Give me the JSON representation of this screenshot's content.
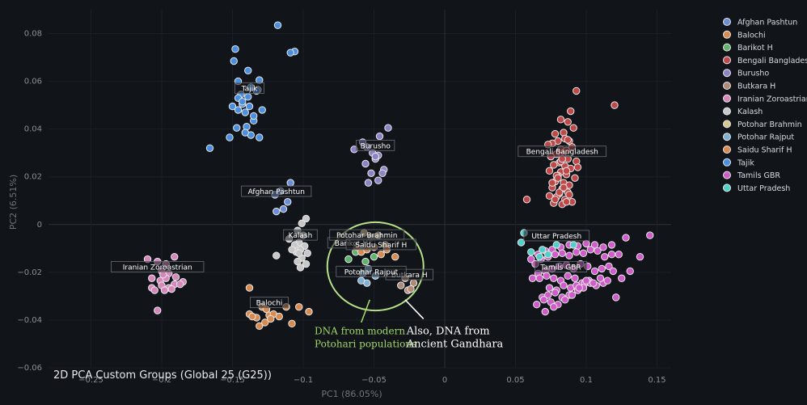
{
  "chart_data": {
    "type": "scatter",
    "title": "2D PCA Custom Groups (Global 25 (G25))",
    "xlabel": "PC1 (86.05%)",
    "ylabel": "PC2 (6.51%)",
    "xlim": [
      -0.28,
      0.16
    ],
    "ylim": [
      -0.06,
      0.09
    ],
    "xticks": [
      -0.25,
      -0.2,
      -0.15,
      -0.1,
      -0.05,
      0,
      0.05,
      0.1,
      0.15
    ],
    "xtick_labels": [
      "−0.25",
      "−0.2",
      "−0.15",
      "−0.1",
      "−0.05",
      "0",
      "0.05",
      "0.1",
      "0.15"
    ],
    "yticks": [
      -0.06,
      -0.04,
      -0.02,
      0,
      0.02,
      0.04,
      0.06,
      0.08
    ],
    "ytick_labels": [
      "−0.06",
      "−0.04",
      "−0.02",
      "0",
      "0.02",
      "0.04",
      "0.06",
      "0.08"
    ],
    "legend_position": "top-right",
    "series": [
      {
        "name": "Afghan Pashtun",
        "color": "#6a8fd8",
        "x": [
          -0.109,
          -0.111,
          -0.114,
          -0.119,
          -0.12,
          -0.116
        ],
        "y": [
          0.0175,
          0.0095,
          0.0065,
          0.0055,
          0.0125,
          0.014
        ],
        "label": "Afghan Pashtun"
      },
      {
        "name": "Balochi",
        "color": "#d98a4e",
        "x": [
          -0.138,
          -0.138,
          -0.133,
          -0.129,
          -0.126,
          -0.124,
          -0.121,
          -0.131,
          -0.127,
          -0.117,
          -0.108,
          -0.112,
          -0.103,
          -0.096,
          -0.136,
          -0.123
        ],
        "y": [
          -0.0265,
          -0.0375,
          -0.039,
          -0.0345,
          -0.0355,
          -0.038,
          -0.0375,
          -0.0425,
          -0.041,
          -0.0385,
          -0.0415,
          -0.0345,
          -0.0345,
          -0.0365,
          -0.0385,
          -0.0395
        ],
        "label": "Balochi"
      },
      {
        "name": "Barikot H",
        "color": "#5fb36a",
        "x": [
          -0.068,
          -0.063,
          -0.056,
          -0.05
        ],
        "y": [
          -0.0145,
          -0.0115,
          -0.0155,
          -0.0135
        ],
        "label": "Barikot H"
      },
      {
        "name": "Bengali Bangladesh",
        "color": "#c04848",
        "x": [
          0.093,
          0.089,
          0.082,
          0.087,
          0.12,
          0.078,
          0.084,
          0.091,
          0.085,
          0.08,
          0.076,
          0.088,
          0.082,
          0.086,
          0.09,
          0.079,
          0.083,
          0.075,
          0.087,
          0.093,
          0.081,
          0.077,
          0.085,
          0.089,
          0.074,
          0.082,
          0.086,
          0.08,
          0.092,
          0.078,
          0.084,
          0.088,
          0.076,
          0.083,
          0.087,
          0.081,
          0.079,
          0.085,
          0.09,
          0.077,
          0.083,
          0.086,
          0.074,
          0.081,
          0.088,
          0.084,
          0.078,
          0.082,
          0.058,
          0.086,
          0.079,
          0.094,
          0.073,
          0.083,
          0.087,
          0.08,
          0.076
        ],
        "y": [
          0.056,
          0.0475,
          0.044,
          0.043,
          0.05,
          0.038,
          0.0385,
          0.0405,
          0.036,
          0.035,
          0.034,
          0.035,
          0.0315,
          0.031,
          0.0325,
          0.0295,
          0.029,
          0.0285,
          0.0275,
          0.0265,
          0.026,
          0.025,
          0.0245,
          0.0235,
          0.0225,
          0.022,
          0.021,
          0.0205,
          0.0195,
          0.018,
          0.0175,
          0.0165,
          0.0155,
          0.015,
          0.0135,
          0.013,
          0.0115,
          0.0105,
          0.0095,
          0.009,
          0.0085,
          0.0095,
          0.012,
          0.0135,
          0.0125,
          0.0155,
          0.0105,
          0.0265,
          0.0105,
          0.0225,
          0.0205,
          0.024,
          0.0335,
          0.0275,
          0.0355,
          0.0195,
          0.0175
        ],
        "label": "Bengali Bangladesh"
      },
      {
        "name": "Burusho",
        "color": "#8b85c7",
        "x": [
          -0.04,
          -0.046,
          -0.058,
          -0.064,
          -0.055,
          -0.051,
          -0.047,
          -0.049,
          -0.043,
          -0.056,
          -0.052,
          -0.047,
          -0.044,
          -0.054,
          -0.049
        ],
        "y": [
          0.0405,
          0.037,
          0.0345,
          0.0315,
          0.0325,
          0.03,
          0.029,
          0.0275,
          0.023,
          0.0255,
          0.0215,
          0.0185,
          0.0215,
          0.0175,
          0.0285
        ],
        "label": "Burusho"
      },
      {
        "name": "Butkara H",
        "color": "#b08a77",
        "x": [
          -0.022,
          -0.026,
          -0.031,
          -0.028,
          -0.024
        ],
        "y": [
          -0.0245,
          -0.0275,
          -0.0255,
          -0.0225,
          -0.027
        ],
        "label": "Butkara H"
      },
      {
        "name": "Iranian Zoroastrian",
        "color": "#d887bd",
        "x": [
          -0.21,
          -0.203,
          -0.197,
          -0.191,
          -0.2,
          -0.195,
          -0.207,
          -0.201,
          -0.197,
          -0.19,
          -0.185,
          -0.2,
          -0.195,
          -0.191,
          -0.207,
          -0.205,
          -0.198,
          -0.193,
          -0.187,
          -0.203,
          -0.199
        ],
        "y": [
          -0.0145,
          -0.0155,
          -0.0165,
          -0.0135,
          -0.0195,
          -0.0205,
          -0.0225,
          -0.0235,
          -0.0225,
          -0.022,
          -0.024,
          -0.0255,
          -0.0265,
          -0.025,
          -0.0265,
          -0.0275,
          -0.0275,
          -0.027,
          -0.025,
          -0.036,
          -0.021
        ],
        "label": "Iranian Zoroastrian"
      },
      {
        "name": "Kalash",
        "color": "#c8c8c8",
        "x": [
          -0.098,
          -0.101,
          -0.104,
          -0.1,
          -0.11,
          -0.103,
          -0.106,
          -0.099,
          -0.102,
          -0.105,
          -0.097,
          -0.108,
          -0.101,
          -0.104,
          -0.098,
          -0.102,
          -0.103,
          -0.119
        ],
        "y": [
          0.0025,
          0.0005,
          -0.0025,
          -0.0045,
          -0.006,
          -0.0075,
          -0.0085,
          -0.009,
          -0.0105,
          -0.0115,
          -0.012,
          -0.0105,
          -0.014,
          -0.0155,
          -0.0165,
          -0.018,
          -0.012,
          -0.013
        ],
        "label": "Kalash"
      },
      {
        "name": "Potohar Brahmin",
        "color": "#d9c88c",
        "x": [
          -0.057,
          -0.052,
          -0.047,
          -0.042
        ],
        "y": [
          -0.0035,
          -0.0055,
          -0.0045,
          -0.0085
        ],
        "label": "Potohar Brahmin"
      },
      {
        "name": "Potohar Rajput",
        "color": "#7fb0d6",
        "x": [
          -0.058,
          -0.054,
          -0.049,
          -0.055,
          -0.059
        ],
        "y": [
          -0.0205,
          -0.0185,
          -0.0215,
          -0.0245,
          -0.0235
        ],
        "label": "Potohar Rajput"
      },
      {
        "name": "Saidu Sharif H",
        "color": "#d98a4e",
        "x": [
          -0.062,
          -0.059,
          -0.055,
          -0.05,
          -0.045,
          -0.035,
          -0.041
        ],
        "y": [
          -0.0095,
          -0.0115,
          -0.0105,
          -0.0095,
          -0.0125,
          -0.0135,
          -0.0105
        ],
        "label": "Saidu Sharif H"
      },
      {
        "name": "Tajik",
        "color": "#4a8fe0",
        "x": [
          -0.118,
          -0.106,
          -0.109,
          -0.148,
          -0.149,
          -0.139,
          -0.146,
          -0.132,
          -0.133,
          -0.144,
          -0.146,
          -0.143,
          -0.138,
          -0.15,
          -0.146,
          -0.141,
          -0.129,
          -0.135,
          -0.14,
          -0.147,
          -0.137,
          -0.131,
          -0.152,
          -0.141,
          -0.137,
          -0.131,
          -0.166,
          -0.143,
          -0.139,
          -0.135
        ],
        "y": [
          0.0835,
          0.0725,
          0.072,
          0.0735,
          0.0685,
          0.0645,
          0.06,
          0.0565,
          0.056,
          0.0545,
          0.053,
          0.0505,
          0.0495,
          0.0495,
          0.048,
          0.047,
          0.048,
          0.0435,
          0.041,
          0.0405,
          0.0375,
          0.0365,
          0.0365,
          0.0385,
          0.0575,
          0.0605,
          0.032,
          0.0515,
          0.0535,
          0.0455
        ],
        "label": "Tajik"
      },
      {
        "name": "Tamils GBR",
        "color": "#d05cc9",
        "x": [
          0.145,
          0.128,
          0.138,
          0.118,
          0.112,
          0.106,
          0.1,
          0.094,
          0.088,
          0.082,
          0.076,
          0.071,
          0.066,
          0.061,
          0.064,
          0.068,
          0.073,
          0.078,
          0.083,
          0.088,
          0.093,
          0.098,
          0.103,
          0.108,
          0.113,
          0.118,
          0.123,
          0.116,
          0.111,
          0.106,
          0.101,
          0.096,
          0.091,
          0.086,
          0.081,
          0.076,
          0.071,
          0.066,
          0.062,
          0.067,
          0.072,
          0.077,
          0.082,
          0.087,
          0.092,
          0.097,
          0.102,
          0.107,
          0.112,
          0.119,
          0.074,
          0.079,
          0.084,
          0.089,
          0.094,
          0.099,
          0.069,
          0.073,
          0.078,
          0.083,
          0.088,
          0.093,
          0.098,
          0.103,
          0.065,
          0.07,
          0.075,
          0.08,
          0.085,
          0.09,
          0.095,
          0.1,
          0.105,
          0.11,
          0.115,
          0.125,
          0.131,
          0.121,
          0.071,
          0.077
        ],
        "y": [
          -0.0045,
          -0.0055,
          -0.0135,
          -0.0085,
          -0.0095,
          -0.0085,
          -0.008,
          -0.009,
          -0.0085,
          -0.0095,
          -0.0105,
          -0.011,
          -0.0125,
          -0.0145,
          -0.0165,
          -0.0145,
          -0.0135,
          -0.0125,
          -0.012,
          -0.013,
          -0.0115,
          -0.012,
          -0.0105,
          -0.011,
          -0.0135,
          -0.0125,
          -0.0125,
          -0.0175,
          -0.0185,
          -0.0195,
          -0.0175,
          -0.0165,
          -0.0185,
          -0.017,
          -0.0175,
          -0.0185,
          -0.0195,
          -0.0205,
          -0.0225,
          -0.0225,
          -0.0215,
          -0.0225,
          -0.0235,
          -0.0215,
          -0.0225,
          -0.0245,
          -0.0235,
          -0.0255,
          -0.0245,
          -0.0195,
          -0.0265,
          -0.0275,
          -0.0255,
          -0.0265,
          -0.0275,
          -0.0245,
          -0.0305,
          -0.0295,
          -0.0285,
          -0.0305,
          -0.0295,
          -0.0255,
          -0.0265,
          -0.0245,
          -0.0335,
          -0.0315,
          -0.0325,
          -0.0335,
          -0.0315,
          -0.0295,
          -0.0265,
          -0.0235,
          -0.0245,
          -0.0225,
          -0.0235,
          -0.0225,
          -0.0195,
          -0.0305,
          -0.0365,
          -0.0345
        ],
        "label": "Tamils GBR"
      },
      {
        "name": "Uttar Pradesh",
        "color": "#4fd0c8",
        "x": [
          0.056,
          0.054,
          0.069,
          0.073,
          0.079,
          0.091,
          0.067,
          0.061
        ],
        "y": [
          -0.0035,
          -0.0075,
          -0.0105,
          -0.0125,
          -0.0085,
          -0.0085,
          -0.0135,
          -0.0115
        ],
        "label": "Uttar Pradesh"
      }
    ],
    "annotations": [
      {
        "type": "ellipse",
        "cx": -0.049,
        "cy": -0.0175,
        "rx": 0.034,
        "ry": 0.0185,
        "color": "#b6e08a"
      },
      {
        "type": "arrow",
        "x1": -0.053,
        "y1": -0.0315,
        "x2": -0.059,
        "y2": -0.041,
        "color": "#9fd66a",
        "text_lines": [
          "DNA from modern",
          "Potohari populations"
        ],
        "text_x": -0.092,
        "text_y": -0.046
      },
      {
        "type": "arrow",
        "x1": -0.028,
        "y1": -0.0315,
        "x2": -0.015,
        "y2": -0.0395,
        "color": "#ffffff",
        "text_lines": [
          "Also, DNA from",
          "Ancient Gandhara"
        ],
        "text_x": -0.027,
        "text_y": -0.046
      }
    ],
    "group_label_positions": {
      "Tajik": [
        -0.138,
        0.057
      ],
      "Burusho": [
        -0.049,
        0.033
      ],
      "Bengali Bangladesh": [
        0.083,
        0.0305
      ],
      "Afghan Pashtun": [
        -0.119,
        0.0138
      ],
      "Kalash": [
        -0.102,
        -0.0045
      ],
      "Potohar Brahmin": [
        -0.055,
        -0.0045
      ],
      "Barikot H": [
        -0.066,
        -0.0078
      ],
      "Saidu Sharif H": [
        -0.045,
        -0.0085
      ],
      "Uttar Pradesh": [
        0.079,
        -0.0048
      ],
      "Iranian Zoroastrian": [
        -0.203,
        -0.0178
      ],
      "Tamils GBR": [
        0.082,
        -0.0178
      ],
      "Potohar Rajput": [
        -0.052,
        -0.0198
      ],
      "Butkara H": [
        -0.025,
        -0.0211
      ],
      "Balochi": [
        -0.124,
        -0.0328
      ]
    }
  }
}
